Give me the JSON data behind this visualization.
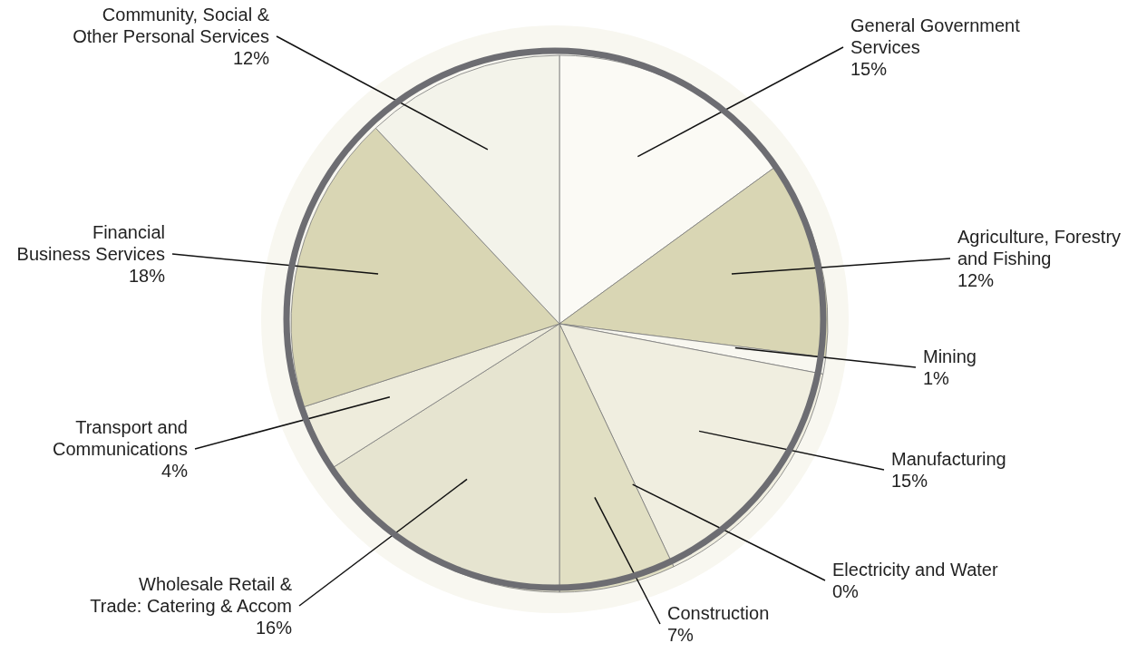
{
  "chart_data": {
    "type": "pie",
    "categories": [
      "General Government\nServices",
      "Agriculture, Forestry\nand Fishing",
      "Mining",
      "Manufacturing",
      "Electricity and Water",
      "Construction",
      "Wholesale Retail &\nTrade: Catering & Accom",
      "Transport and\nCommunications",
      "Financial\nBusiness Services",
      "Community, Social &\nOther Personal Services"
    ],
    "values": [
      15,
      12,
      1,
      15,
      0,
      7,
      16,
      4,
      18,
      12
    ],
    "value_labels": [
      "15%",
      "12%",
      "1%",
      "15%",
      "0%",
      "7%",
      "16%",
      "4%",
      "18%",
      "12%"
    ],
    "colors": [
      "#fbfaf5",
      "#d9d6b4",
      "#f8f7f0",
      "#f0eee0",
      "#f4f2e6",
      "#e1dfc3",
      "#e6e4d0",
      "#eeecdc",
      "#d9d6b4",
      "#f3f3ea"
    ]
  }
}
